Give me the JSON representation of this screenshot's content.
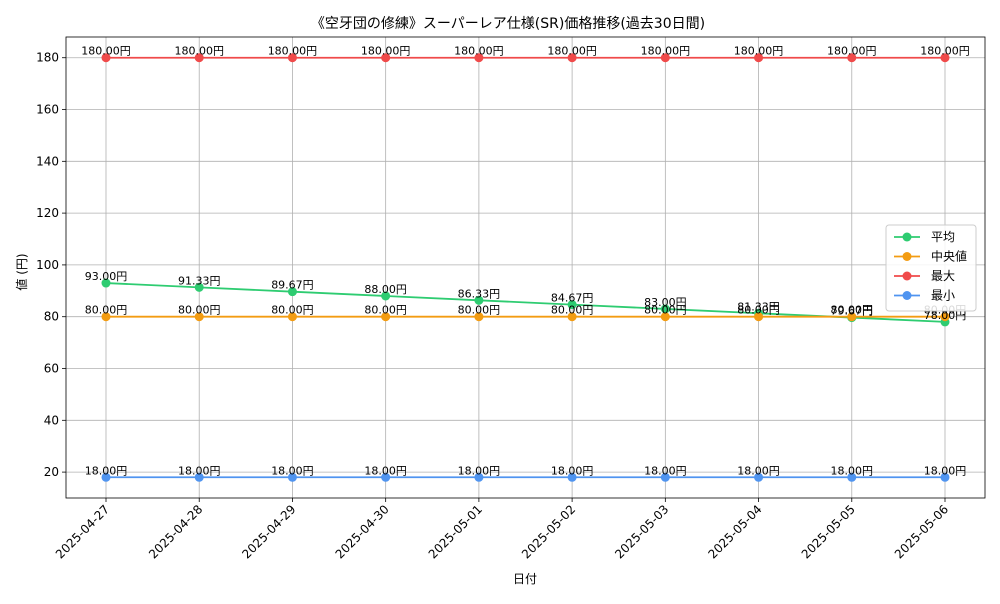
{
  "chart_data": {
    "type": "line",
    "title": "《空牙団の修練》スーパーレア仕様(SR)価格推移(過去30日間)",
    "xlabel": "日付",
    "ylabel": "値 (円)",
    "ylim": [
      10,
      188
    ],
    "yticks": [
      20,
      40,
      60,
      80,
      100,
      120,
      140,
      160,
      180
    ],
    "grid": true,
    "legend_position": "center-right",
    "value_suffix": "円",
    "categories": [
      "2025-04-27",
      "2025-04-28",
      "2025-04-29",
      "2025-04-30",
      "2025-05-01",
      "2025-05-02",
      "2025-05-03",
      "2025-05-04",
      "2025-05-05",
      "2025-05-06"
    ],
    "series": [
      {
        "name": "平均",
        "color": "#2ecc71",
        "values": [
          93.0,
          91.33,
          89.67,
          88.0,
          86.33,
          84.67,
          83.0,
          81.33,
          79.67,
          78.0
        ]
      },
      {
        "name": "中央値",
        "color": "#f39c12",
        "values": [
          80.0,
          80.0,
          80.0,
          80.0,
          80.0,
          80.0,
          80.0,
          80.0,
          80.0,
          80.0
        ]
      },
      {
        "name": "最大",
        "color": "#f04a4a",
        "values": [
          180.0,
          180.0,
          180.0,
          180.0,
          180.0,
          180.0,
          180.0,
          180.0,
          180.0,
          180.0
        ]
      },
      {
        "name": "最小",
        "color": "#4f94f0",
        "values": [
          18.0,
          18.0,
          18.0,
          18.0,
          18.0,
          18.0,
          18.0,
          18.0,
          18.0,
          18.0
        ]
      }
    ]
  }
}
